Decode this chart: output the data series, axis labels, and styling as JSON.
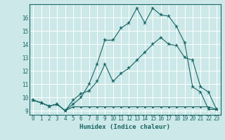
{
  "xlabel": "Humidex (Indice chaleur)",
  "bg_color": "#cce8e8",
  "grid_color": "#ffffff",
  "line_color": "#1a6666",
  "xlim": [
    -0.5,
    23.5
  ],
  "ylim": [
    8.7,
    17.0
  ],
  "yticks": [
    9,
    10,
    11,
    12,
    13,
    14,
    15,
    16
  ],
  "xticks": [
    0,
    1,
    2,
    3,
    4,
    5,
    6,
    7,
    8,
    9,
    10,
    11,
    12,
    13,
    14,
    15,
    16,
    17,
    18,
    19,
    20,
    21,
    22,
    23
  ],
  "series1_x": [
    0,
    1,
    2,
    3,
    4,
    5,
    6,
    7,
    8,
    9,
    10,
    11,
    12,
    13,
    14,
    15,
    16,
    17,
    18,
    19,
    20,
    21,
    22,
    23
  ],
  "series1_y": [
    9.8,
    9.6,
    9.35,
    9.5,
    9.0,
    9.3,
    9.3,
    9.3,
    9.3,
    9.3,
    9.3,
    9.3,
    9.3,
    9.3,
    9.3,
    9.3,
    9.3,
    9.3,
    9.3,
    9.3,
    9.3,
    9.3,
    9.3,
    9.1
  ],
  "series2_x": [
    0,
    1,
    2,
    3,
    4,
    5,
    6,
    7,
    8,
    9,
    10,
    11,
    12,
    13,
    14,
    15,
    16,
    17,
    18,
    19,
    20,
    21,
    22,
    23
  ],
  "series2_y": [
    9.8,
    9.6,
    9.35,
    9.5,
    9.0,
    9.5,
    10.0,
    11.0,
    12.5,
    14.3,
    14.3,
    15.2,
    15.6,
    16.7,
    15.6,
    16.7,
    16.2,
    16.1,
    15.3,
    14.1,
    10.8,
    10.4,
    9.1,
    9.1
  ],
  "series3_x": [
    0,
    1,
    2,
    3,
    4,
    5,
    6,
    7,
    8,
    9,
    10,
    11,
    12,
    13,
    14,
    15,
    16,
    17,
    18,
    19,
    20,
    21,
    22,
    23
  ],
  "series3_y": [
    9.8,
    9.6,
    9.35,
    9.5,
    9.0,
    9.8,
    10.3,
    10.5,
    11.2,
    12.5,
    11.2,
    11.8,
    12.2,
    12.8,
    13.4,
    14.0,
    14.5,
    14.0,
    13.9,
    13.0,
    12.8,
    10.8,
    10.4,
    9.1
  ]
}
